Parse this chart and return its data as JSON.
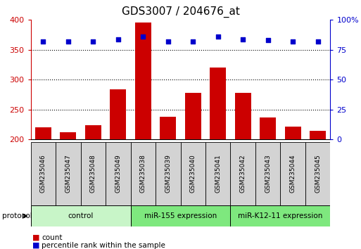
{
  "title": "GDS3007 / 204676_at",
  "samples": [
    "GSM235046",
    "GSM235047",
    "GSM235048",
    "GSM235049",
    "GSM235038",
    "GSM235039",
    "GSM235040",
    "GSM235041",
    "GSM235042",
    "GSM235043",
    "GSM235044",
    "GSM235045"
  ],
  "counts": [
    220,
    212,
    224,
    284,
    396,
    238,
    278,
    320,
    278,
    237,
    221,
    214
  ],
  "percentile_ranks": [
    82,
    82,
    82,
    84,
    86,
    82,
    82,
    86,
    84,
    83,
    82,
    82
  ],
  "groups": [
    {
      "label": "control",
      "start": 0,
      "end": 4,
      "color": "#c8f5c8"
    },
    {
      "label": "miR-155 expression",
      "start": 4,
      "end": 8,
      "color": "#7ee87e"
    },
    {
      "label": "miR-K12-11 expression",
      "start": 8,
      "end": 12,
      "color": "#7ee87e"
    }
  ],
  "ylim_left": [
    200,
    400
  ],
  "ylim_right": [
    0,
    100
  ],
  "yticks_left": [
    200,
    250,
    300,
    350,
    400
  ],
  "yticks_right": [
    0,
    25,
    50,
    75,
    100
  ],
  "bar_color": "#cc0000",
  "dot_color": "#0000cc",
  "bar_width": 0.65,
  "bg_color": "#ffffff",
  "plot_bg_color": "#ffffff",
  "tick_label_bg": "#d0d0d0",
  "xlabel_color": "#cc0000",
  "ylabel_right_color": "#0000cc",
  "legend_count_color": "#cc0000",
  "legend_pct_color": "#0000cc",
  "figsize": [
    5.13,
    3.54
  ],
  "dpi": 100
}
